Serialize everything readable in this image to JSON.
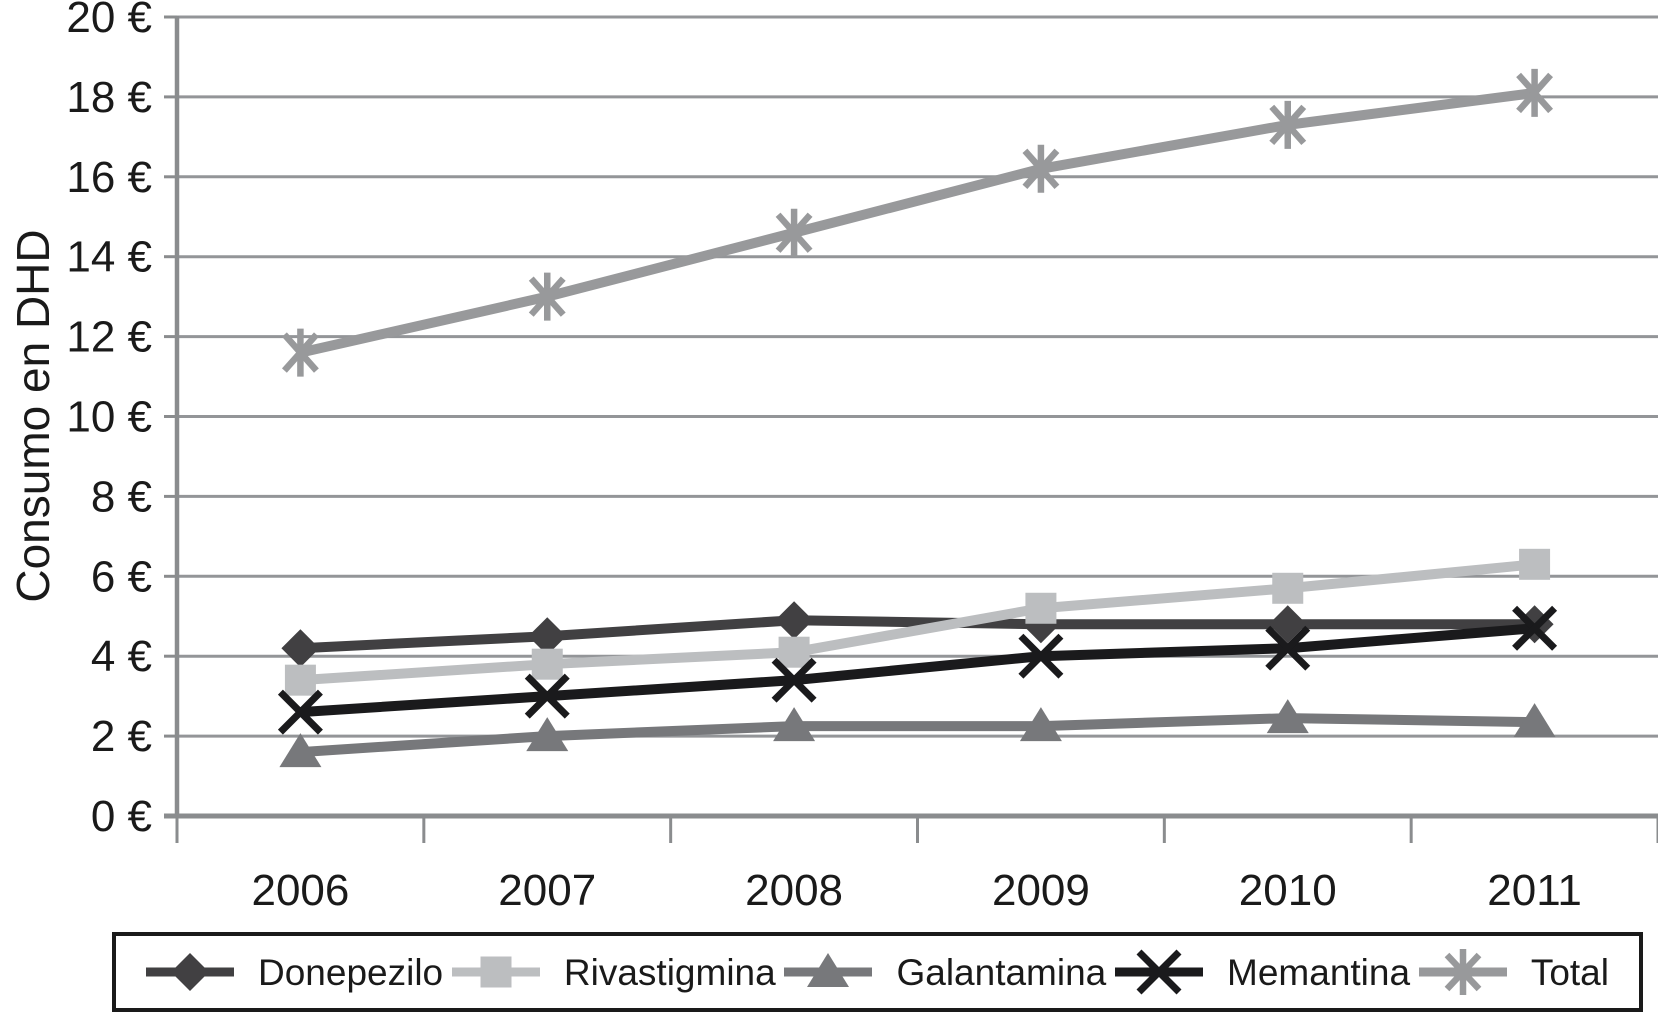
{
  "chart_data": {
    "type": "line",
    "title": "",
    "xlabel": "",
    "ylabel": "Consumo en DHD",
    "categories": [
      "2006",
      "2007",
      "2008",
      "2009",
      "2010",
      "2011"
    ],
    "y_ticks": [
      "0 €",
      "2 €",
      "4 €",
      "6 €",
      "8 €",
      "10 €",
      "12 €",
      "14 €",
      "16 €",
      "18 €",
      "20 €"
    ],
    "ylim": [
      0,
      20
    ],
    "y_step": 2,
    "grid": "horizontal-only",
    "legend_position": "bottom-box",
    "series": [
      {
        "name": "Donepezilo",
        "marker": "diamond",
        "color": "#414042",
        "values": [
          4.2,
          4.5,
          4.9,
          4.8,
          4.8,
          4.8
        ]
      },
      {
        "name": "Rivastigmina",
        "marker": "square",
        "color": "#bcbec0",
        "values": [
          3.4,
          3.8,
          4.1,
          5.2,
          5.7,
          6.3
        ]
      },
      {
        "name": "Galantamina",
        "marker": "triangle",
        "color": "#77787b",
        "values": [
          1.6,
          2.0,
          2.25,
          2.25,
          2.45,
          2.35
        ]
      },
      {
        "name": "Memantina",
        "marker": "x",
        "color": "#1a1a1c",
        "values": [
          2.6,
          3.0,
          3.4,
          4.0,
          4.2,
          4.7
        ]
      },
      {
        "name": "Total",
        "marker": "asterisk",
        "color": "#98999b",
        "values": [
          11.6,
          13.0,
          14.6,
          16.2,
          17.3,
          18.1
        ]
      }
    ],
    "axis_color": "#8a8c8e",
    "grid_color": "#939598",
    "text_color": "#1a1a1a"
  }
}
